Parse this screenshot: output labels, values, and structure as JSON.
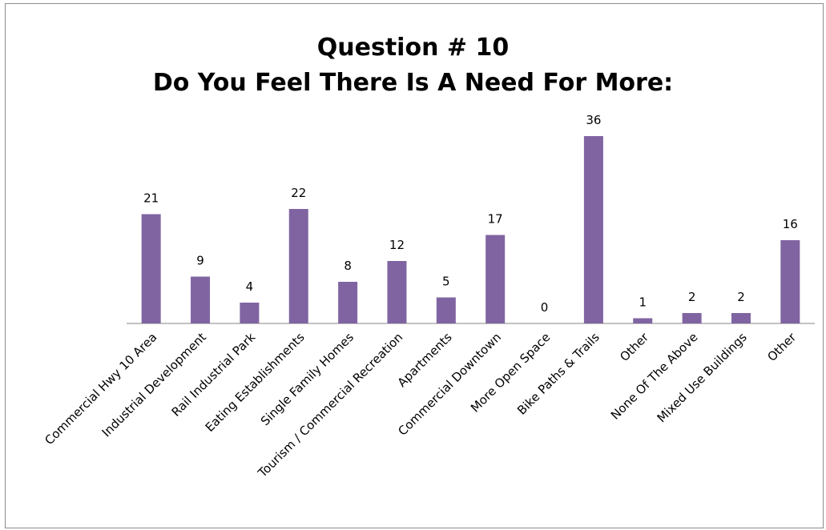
{
  "chart_data": {
    "type": "bar",
    "title_lines": [
      "Question # 10",
      "Do You Feel There Is A Need For More:"
    ],
    "categories": [
      "Commercial Hwy 10 Area",
      "Industrial Development",
      "Rail Industrial Park",
      "Eating Establishments",
      "Single Family Homes",
      "Tourism / Commercial Recreation",
      "Apartments",
      "Commercial Downtown",
      "More Open Space",
      "Bike Paths & Trails",
      "Other",
      "None Of The Above",
      "Mixed Use Buildings",
      "Other"
    ],
    "values": [
      21,
      9,
      4,
      22,
      8,
      12,
      5,
      17,
      0,
      36,
      1,
      2,
      2,
      16
    ],
    "ylim": [
      0,
      40
    ],
    "grid": false,
    "legend": "none",
    "colors": {
      "bar": "#8064a2",
      "axis": "#868686"
    }
  }
}
